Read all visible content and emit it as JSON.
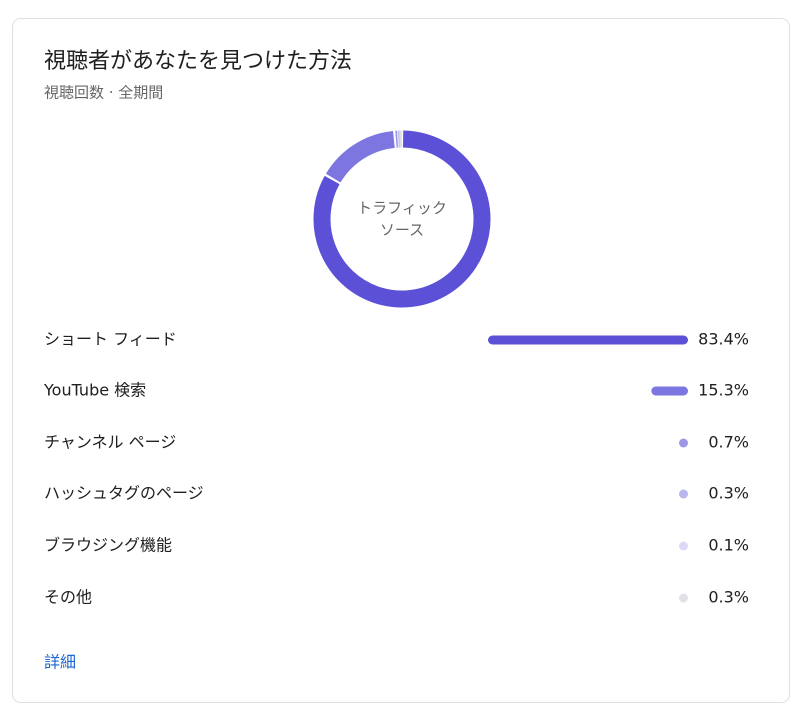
{
  "chart_data": {
    "type": "donut",
    "title": "視聴者があなたを見つけた方法",
    "subtitle": "視聴回数 · 全期間",
    "center_label": "トラフィック ソース",
    "categories": [
      "ショート フィード",
      "YouTube 検索",
      "チャンネル ページ",
      "ハッシュタグのページ",
      "ブラウジング機能",
      "その他"
    ],
    "values": [
      83.4,
      15.3,
      0.7,
      0.3,
      0.1,
      0.3
    ],
    "value_labels": [
      "83.4%",
      "15.3%",
      "0.7%",
      "0.3%",
      "0.1%",
      "0.3%"
    ],
    "colors": [
      "#5c51d6",
      "#7d75e0",
      "#9d97e6",
      "#bbb6ee",
      "#dcd9f6",
      "#e2e2e6"
    ]
  },
  "footer_link": "詳細"
}
